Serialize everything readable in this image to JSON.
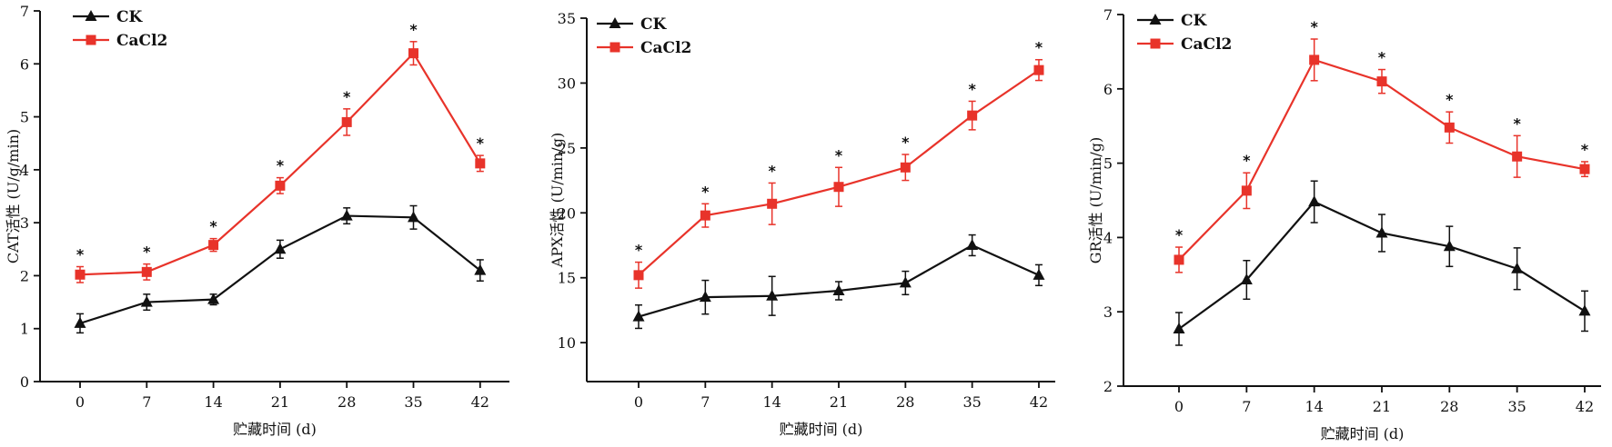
{
  "chart_data": [
    {
      "type": "line",
      "x": [
        0,
        7,
        14,
        21,
        28,
        35,
        42
      ],
      "xlabel": "贮藏时间 (d)",
      "ylabel": "CAT活性 (U/g/min)",
      "ylim": [
        0,
        7
      ],
      "yticks": [
        0,
        1,
        2,
        3,
        4,
        5,
        6,
        7
      ],
      "series": [
        {
          "name": "CK",
          "values": [
            1.1,
            1.5,
            1.55,
            2.5,
            3.13,
            3.1,
            2.1
          ],
          "errors": [
            0.18,
            0.15,
            0.1,
            0.17,
            0.15,
            0.22,
            0.2
          ],
          "color": "#111111",
          "marker": "triangle"
        },
        {
          "name": "CaCl2",
          "values": [
            2.02,
            2.07,
            2.58,
            3.7,
            4.9,
            6.2,
            4.12
          ],
          "errors": [
            0.15,
            0.15,
            0.12,
            0.15,
            0.25,
            0.22,
            0.15
          ],
          "color": "#e8332a",
          "marker": "square"
        }
      ],
      "annotations": [
        "*",
        "*",
        "*",
        "*",
        "*",
        "*",
        "*"
      ]
    },
    {
      "type": "line",
      "x": [
        0,
        7,
        14,
        21,
        28,
        35,
        42
      ],
      "xlabel": "贮藏时间 (d)",
      "ylabel": "APX活性 (U/min/g)",
      "ylim": [
        7,
        35
      ],
      "yticks": [
        10,
        15,
        20,
        25,
        30,
        35
      ],
      "series": [
        {
          "name": "CK",
          "values": [
            12.0,
            13.5,
            13.6,
            14.0,
            14.6,
            17.5,
            15.2
          ],
          "errors": [
            0.9,
            1.3,
            1.5,
            0.7,
            0.9,
            0.8,
            0.8
          ],
          "color": "#111111",
          "marker": "triangle"
        },
        {
          "name": "CaCl2",
          "values": [
            15.2,
            19.8,
            20.7,
            22.0,
            23.5,
            27.5,
            31.0
          ],
          "errors": [
            1.0,
            0.9,
            1.6,
            1.5,
            1.0,
            1.1,
            0.8
          ],
          "color": "#e8332a",
          "marker": "square"
        }
      ],
      "annotations": [
        "*",
        "*",
        "*",
        "*",
        "*",
        "*",
        "*"
      ]
    },
    {
      "type": "line",
      "x": [
        0,
        7,
        14,
        21,
        28,
        35,
        42
      ],
      "xlabel": "贮藏时间 (d)",
      "ylabel": "GR活性 (U/min/g)",
      "ylim": [
        2,
        7
      ],
      "yticks": [
        2,
        3,
        4,
        5,
        6,
        7
      ],
      "series": [
        {
          "name": "CK",
          "values": [
            2.77,
            3.43,
            4.48,
            4.06,
            3.88,
            3.58,
            3.01
          ],
          "errors": [
            0.22,
            0.26,
            0.28,
            0.25,
            0.27,
            0.28,
            0.27
          ],
          "color": "#111111",
          "marker": "triangle"
        },
        {
          "name": "CaCl2",
          "values": [
            3.7,
            4.63,
            6.39,
            6.1,
            5.48,
            5.09,
            4.92
          ],
          "errors": [
            0.17,
            0.24,
            0.28,
            0.16,
            0.21,
            0.28,
            0.1
          ],
          "color": "#e8332a",
          "marker": "square"
        }
      ],
      "annotations": [
        "*",
        "*",
        "*",
        "*",
        "*",
        "*",
        "*"
      ]
    }
  ]
}
